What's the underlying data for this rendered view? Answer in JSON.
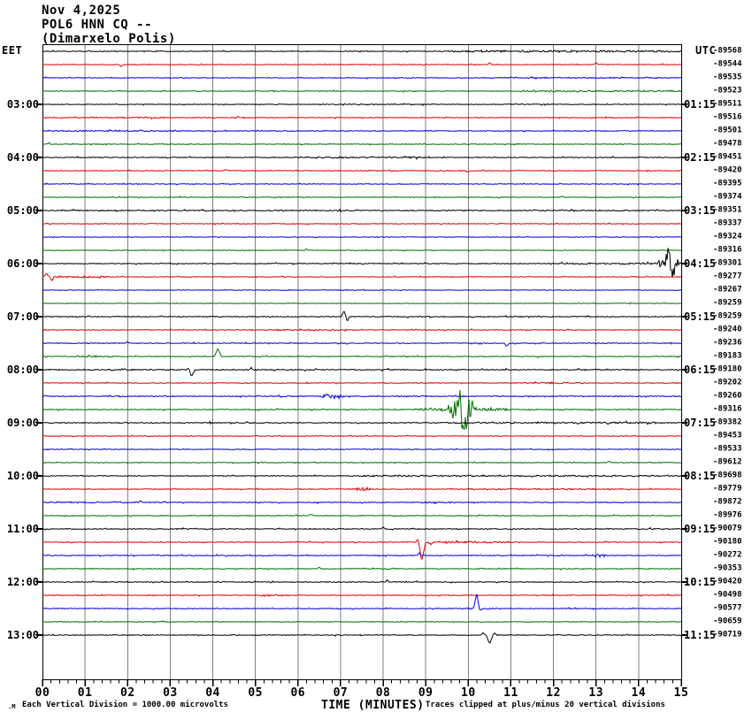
{
  "title": {
    "date": "Nov 4,2025",
    "station": "POL6 HNN CQ --",
    "location": "(Dimarxelo Polis)"
  },
  "axes": {
    "left_header": "EET",
    "right_header": "UTC",
    "x_axis_title": "TIME (MINUTES)",
    "x_tick_labels": [
      "00",
      "01",
      "02",
      "03",
      "04",
      "05",
      "06",
      "07",
      "08",
      "09",
      "10",
      "11",
      "12",
      "13",
      "14",
      "15"
    ]
  },
  "footer": {
    "left_symbol": ".M",
    "scale_note": "Each Vertical Division = 1000.00 microvolts",
    "clip_note": "Traces clipped at plus/minus 20 vertical divisions"
  },
  "colors": {
    "grid": "#808080",
    "frame": "#000000",
    "background": "#ffffff",
    "trace_colors": {
      "black": "#000000",
      "red": "#e00000",
      "blue": "#0000dd",
      "green": "#006e00"
    }
  },
  "chart_data": {
    "type": "line",
    "variant": "helicorder-seismogram",
    "xlabel": "TIME (MINUTES)",
    "x_range": [
      0,
      15
    ],
    "minutes_per_row": 15,
    "grid": "vertical-every-minute",
    "left_time_zone": "EET",
    "right_time_zone": "UTC",
    "left_hour_labels": [
      "03:00",
      "04:00",
      "05:00",
      "06:00",
      "07:00",
      "08:00",
      "09:00",
      "10:00",
      "11:00",
      "12:00",
      "13:00"
    ],
    "right_hour_labels": [
      "01:15",
      "02:15",
      "03:15",
      "04:15",
      "05:15",
      "06:15",
      "07:15",
      "08:15",
      "09:15",
      "10:15",
      "11:15"
    ],
    "trace_color_cycle": [
      "black",
      "red",
      "blue",
      "green"
    ],
    "rows": [
      {
        "eet": "02:00",
        "offset": "-89568",
        "color": "black",
        "noise": 0.4,
        "seg": [
          [
            9.5,
            15,
            0.9
          ]
        ]
      },
      {
        "eet": "02:15",
        "offset": "-89544",
        "color": "red",
        "noise": 0.35,
        "sp": [
          [
            1.85,
            -2,
            0.06
          ],
          [
            10.5,
            2,
            0.05
          ],
          [
            13.0,
            1.5,
            0.05
          ]
        ]
      },
      {
        "eet": "02:30",
        "offset": "-89535",
        "color": "blue",
        "noise": 0.35,
        "seg": [
          [
            10.5,
            14.5,
            0.5
          ]
        ]
      },
      {
        "eet": "02:45",
        "offset": "-89523",
        "color": "green",
        "noise": 0.35,
        "seg": [
          [
            11.2,
            15,
            0.7
          ]
        ]
      },
      {
        "eet": "03:00",
        "eet_label": "03:00",
        "utc_label": "01:15",
        "offset": "-89511",
        "color": "black",
        "noise": 0.35,
        "seg": [
          [
            6.5,
            9.2,
            0.5
          ],
          [
            10.8,
            12,
            0.5
          ]
        ]
      },
      {
        "eet": "03:15",
        "offset": "-89516",
        "color": "red",
        "noise": 0.4,
        "seg": [
          [
            1.5,
            2.9,
            0.6
          ]
        ],
        "sp": [
          [
            4.6,
            1.5,
            0.05
          ]
        ]
      },
      {
        "eet": "03:30",
        "offset": "-89501",
        "color": "blue",
        "noise": 0.4,
        "seg": [
          [
            0.3,
            3.2,
            0.6
          ]
        ]
      },
      {
        "eet": "03:45",
        "offset": "-89478",
        "color": "green",
        "noise": 0.35,
        "sp": [
          [
            0.15,
            1.5,
            0.05
          ]
        ]
      },
      {
        "eet": "04:00",
        "eet_label": "04:00",
        "utc_label": "02:15",
        "offset": "-89451",
        "color": "black",
        "noise": 0.45,
        "seg": [
          [
            6.0,
            9.5,
            0.7
          ]
        ]
      },
      {
        "eet": "04:15",
        "offset": "-89420",
        "color": "red",
        "noise": 0.4,
        "sp": [
          [
            4.3,
            1.5,
            0.05
          ],
          [
            10.0,
            -1.5,
            0.05
          ]
        ]
      },
      {
        "eet": "04:30",
        "offset": "-89395",
        "color": "blue",
        "noise": 0.35
      },
      {
        "eet": "04:45",
        "offset": "-89374",
        "color": "green",
        "noise": 0.35,
        "sp": [
          [
            12.2,
            1.5,
            0.05
          ]
        ]
      },
      {
        "eet": "05:00",
        "eet_label": "05:00",
        "utc_label": "03:15",
        "offset": "-89351",
        "color": "black",
        "noise": 0.55
      },
      {
        "eet": "05:15",
        "offset": "-89337",
        "color": "red",
        "noise": 0.35
      },
      {
        "eet": "05:30",
        "offset": "-89324",
        "color": "blue",
        "noise": 0.3
      },
      {
        "eet": "05:45",
        "offset": "-89316",
        "color": "green",
        "noise": 0.3,
        "sp": [
          [
            6.2,
            1.5,
            0.05
          ]
        ]
      },
      {
        "eet": "06:00",
        "eet_label": "06:00",
        "utc_label": "04:15",
        "offset": "-89301",
        "color": "black",
        "noise": 0.45,
        "seg": [
          [
            11.9,
            14.4,
            0.7
          ]
        ],
        "b": [
          [
            14.45,
            15,
            9
          ]
        ],
        "sp": [
          [
            14.7,
            14,
            0.09
          ],
          [
            14.78,
            -13,
            0.09
          ]
        ]
      },
      {
        "eet": "06:15",
        "offset": "-89277",
        "color": "red",
        "noise": 0.35,
        "seg": [
          [
            0,
            1.6,
            0.8
          ]
        ],
        "sp": [
          [
            0.1,
            4,
            0.08
          ],
          [
            0.22,
            -4,
            0.05
          ]
        ]
      },
      {
        "eet": "06:30",
        "offset": "-89267",
        "color": "blue",
        "noise": 0.3
      },
      {
        "eet": "06:45",
        "offset": "-89259",
        "color": "green",
        "noise": 0.3
      },
      {
        "eet": "07:00",
        "eet_label": "07:00",
        "utc_label": "05:15",
        "offset": "-89259",
        "color": "black",
        "noise": 0.5,
        "sp": [
          [
            7.08,
            6,
            0.07
          ],
          [
            7.16,
            -5,
            0.06
          ]
        ]
      },
      {
        "eet": "07:15",
        "offset": "-89240",
        "color": "red",
        "noise": 0.4,
        "seg": [
          [
            5.3,
            7.2,
            0.7
          ]
        ]
      },
      {
        "eet": "07:30",
        "offset": "-89236",
        "color": "blue",
        "noise": 0.45,
        "sp": [
          [
            2.0,
            2,
            0.05
          ],
          [
            10.9,
            -3.5,
            0.06
          ]
        ]
      },
      {
        "eet": "07:45",
        "offset": "-89183",
        "color": "green",
        "noise": 0.4,
        "seg": [
          [
            0.8,
            1.7,
            0.7
          ]
        ],
        "sp": [
          [
            4.12,
            9,
            0.08
          ]
        ]
      },
      {
        "eet": "08:00",
        "eet_label": "08:00",
        "utc_label": "06:15",
        "offset": "-89180",
        "color": "black",
        "noise": 0.55,
        "sp": [
          [
            3.5,
            -8,
            0.08
          ],
          [
            3.44,
            3,
            0.06
          ],
          [
            4.9,
            2,
            0.05
          ]
        ]
      },
      {
        "eet": "08:15",
        "offset": "-89202",
        "color": "red",
        "noise": 0.4,
        "seg": [
          [
            11.3,
            12.7,
            0.8
          ]
        ]
      },
      {
        "eet": "08:30",
        "offset": "-89260",
        "color": "blue",
        "noise": 0.5,
        "b": [
          [
            6.5,
            7.15,
            2.6
          ]
        ]
      },
      {
        "eet": "08:45",
        "offset": "-89316",
        "color": "green",
        "noise": 0.45,
        "b": [
          [
            8.7,
            9.55,
            1.8
          ],
          [
            9.5,
            10.2,
            15
          ],
          [
            10.2,
            11.0,
            2.2
          ]
        ],
        "sp": [
          [
            9.78,
            20,
            0.08
          ],
          [
            9.9,
            -21,
            0.1
          ]
        ]
      },
      {
        "eet": "09:00",
        "eet_label": "09:00",
        "utc_label": "07:15",
        "offset": "-89382",
        "color": "black",
        "noise": 0.5,
        "seg": [
          [
            9.5,
            14.5,
            0.7
          ]
        ]
      },
      {
        "eet": "09:15",
        "offset": "-89453",
        "color": "red",
        "noise": 0.35
      },
      {
        "eet": "09:30",
        "offset": "-89533",
        "color": "blue",
        "noise": 0.35
      },
      {
        "eet": "09:45",
        "offset": "-89612",
        "color": "green",
        "noise": 0.35,
        "sp": [
          [
            13.3,
            2,
            0.06
          ]
        ]
      },
      {
        "eet": "10:00",
        "eet_label": "10:00",
        "utc_label": "08:15",
        "offset": "-89698",
        "color": "black",
        "noise": 0.4,
        "seg": [
          [
            7.5,
            15,
            0.6
          ]
        ]
      },
      {
        "eet": "10:15",
        "offset": "-89779",
        "color": "red",
        "noise": 0.4,
        "b": [
          [
            7.25,
            7.75,
            2.5
          ]
        ],
        "seg": [
          [
            9.5,
            13,
            0.5
          ]
        ]
      },
      {
        "eet": "10:30",
        "offset": "-89872",
        "color": "blue",
        "noise": 0.45,
        "seg": [
          [
            0,
            3,
            0.5
          ],
          [
            8.9,
            9.7,
            0.8
          ]
        ],
        "sp": [
          [
            2.3,
            2,
            0.05
          ]
        ]
      },
      {
        "eet": "10:45",
        "offset": "-89976",
        "color": "green",
        "noise": 0.4,
        "sp": [
          [
            6.3,
            1.8,
            0.05
          ]
        ]
      },
      {
        "eet": "11:00",
        "eet_label": "11:00",
        "utc_label": "09:15",
        "offset": "-90079",
        "color": "black",
        "noise": 0.5,
        "sp": [
          [
            8.0,
            2.5,
            0.06
          ]
        ]
      },
      {
        "eet": "11:15",
        "offset": "-90180",
        "color": "red",
        "noise": 0.4,
        "b": [
          [
            8.8,
            11.2,
            1.1
          ]
        ],
        "sp": [
          [
            8.9,
            -22,
            0.1
          ],
          [
            8.84,
            8,
            0.07
          ],
          [
            9.12,
            -3,
            0.06
          ]
        ]
      },
      {
        "eet": "11:30",
        "offset": "-90272",
        "color": "blue",
        "noise": 0.45,
        "b": [
          [
            12.9,
            13.3,
            2.0
          ]
        ],
        "sp": [
          [
            8.85,
            3,
            0.05
          ]
        ]
      },
      {
        "eet": "11:45",
        "offset": "-90353",
        "color": "green",
        "noise": 0.4,
        "seg": [
          [
            7.5,
            8.3,
            0.6
          ]
        ],
        "sp": [
          [
            6.5,
            1.8,
            0.05
          ]
        ]
      },
      {
        "eet": "12:00",
        "eet_label": "12:00",
        "utc_label": "10:15",
        "offset": "-90420",
        "color": "black",
        "noise": 0.45,
        "sp": [
          [
            8.1,
            2,
            0.05
          ]
        ]
      },
      {
        "eet": "12:15",
        "offset": "-90498",
        "color": "red",
        "noise": 0.4,
        "b": [
          [
            5.1,
            5.7,
            1.4
          ]
        ]
      },
      {
        "eet": "12:30",
        "offset": "-90577",
        "color": "blue",
        "noise": 0.4,
        "seg": [
          [
            9.8,
            10.9,
            0.7
          ]
        ],
        "sp": [
          [
            10.2,
            16,
            0.08
          ],
          [
            10.26,
            -4,
            0.06
          ]
        ]
      },
      {
        "eet": "12:45",
        "offset": "-90659",
        "color": "green",
        "noise": 0.35
      },
      {
        "eet": "13:00",
        "eet_label": "13:00",
        "utc_label": "11:15",
        "offset": "-90719",
        "color": "black",
        "noise": 0.4,
        "sp": [
          [
            10.5,
            -10,
            0.08
          ],
          [
            10.35,
            2.5,
            0.05
          ],
          [
            10.62,
            2,
            0.05
          ]
        ]
      }
    ]
  }
}
